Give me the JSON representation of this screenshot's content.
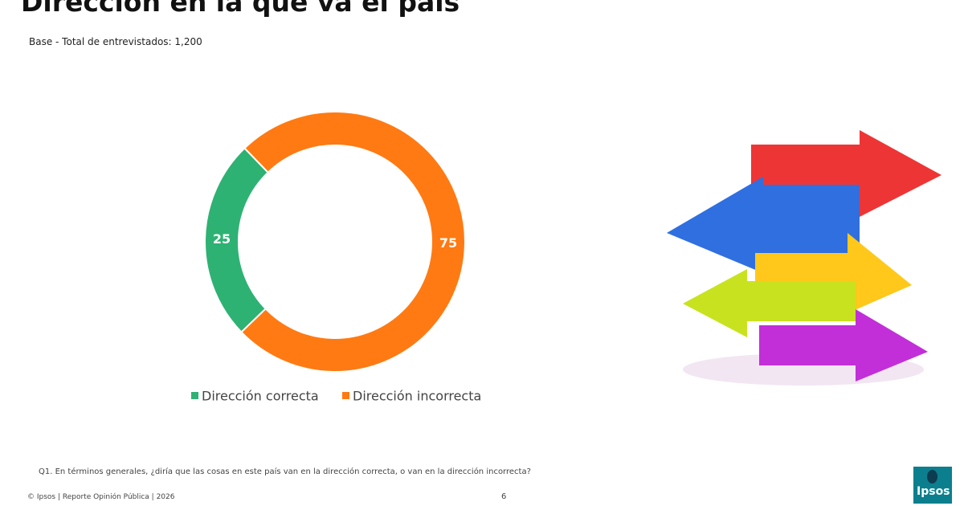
{
  "title": "Dirección en la que va el país",
  "subtitle": "Base - Total de entrevistados: 1,200",
  "chart_data": {
    "type": "pie",
    "donut": true,
    "categories": [
      "Dirección correcta",
      "Dirección incorrecta"
    ],
    "values": [
      25,
      75
    ],
    "colors": [
      "#2eb273",
      "#ff7a12"
    ],
    "legend": "bottom"
  },
  "question": "Q1. En términos generales, ¿diría que las cosas en este país van en la dirección correcta, o van en la dirección incorrecta?",
  "footer": "© Ipsos | Reporte  Opinión Pública | 2026",
  "page_number": "6",
  "logo": "Ipsos"
}
